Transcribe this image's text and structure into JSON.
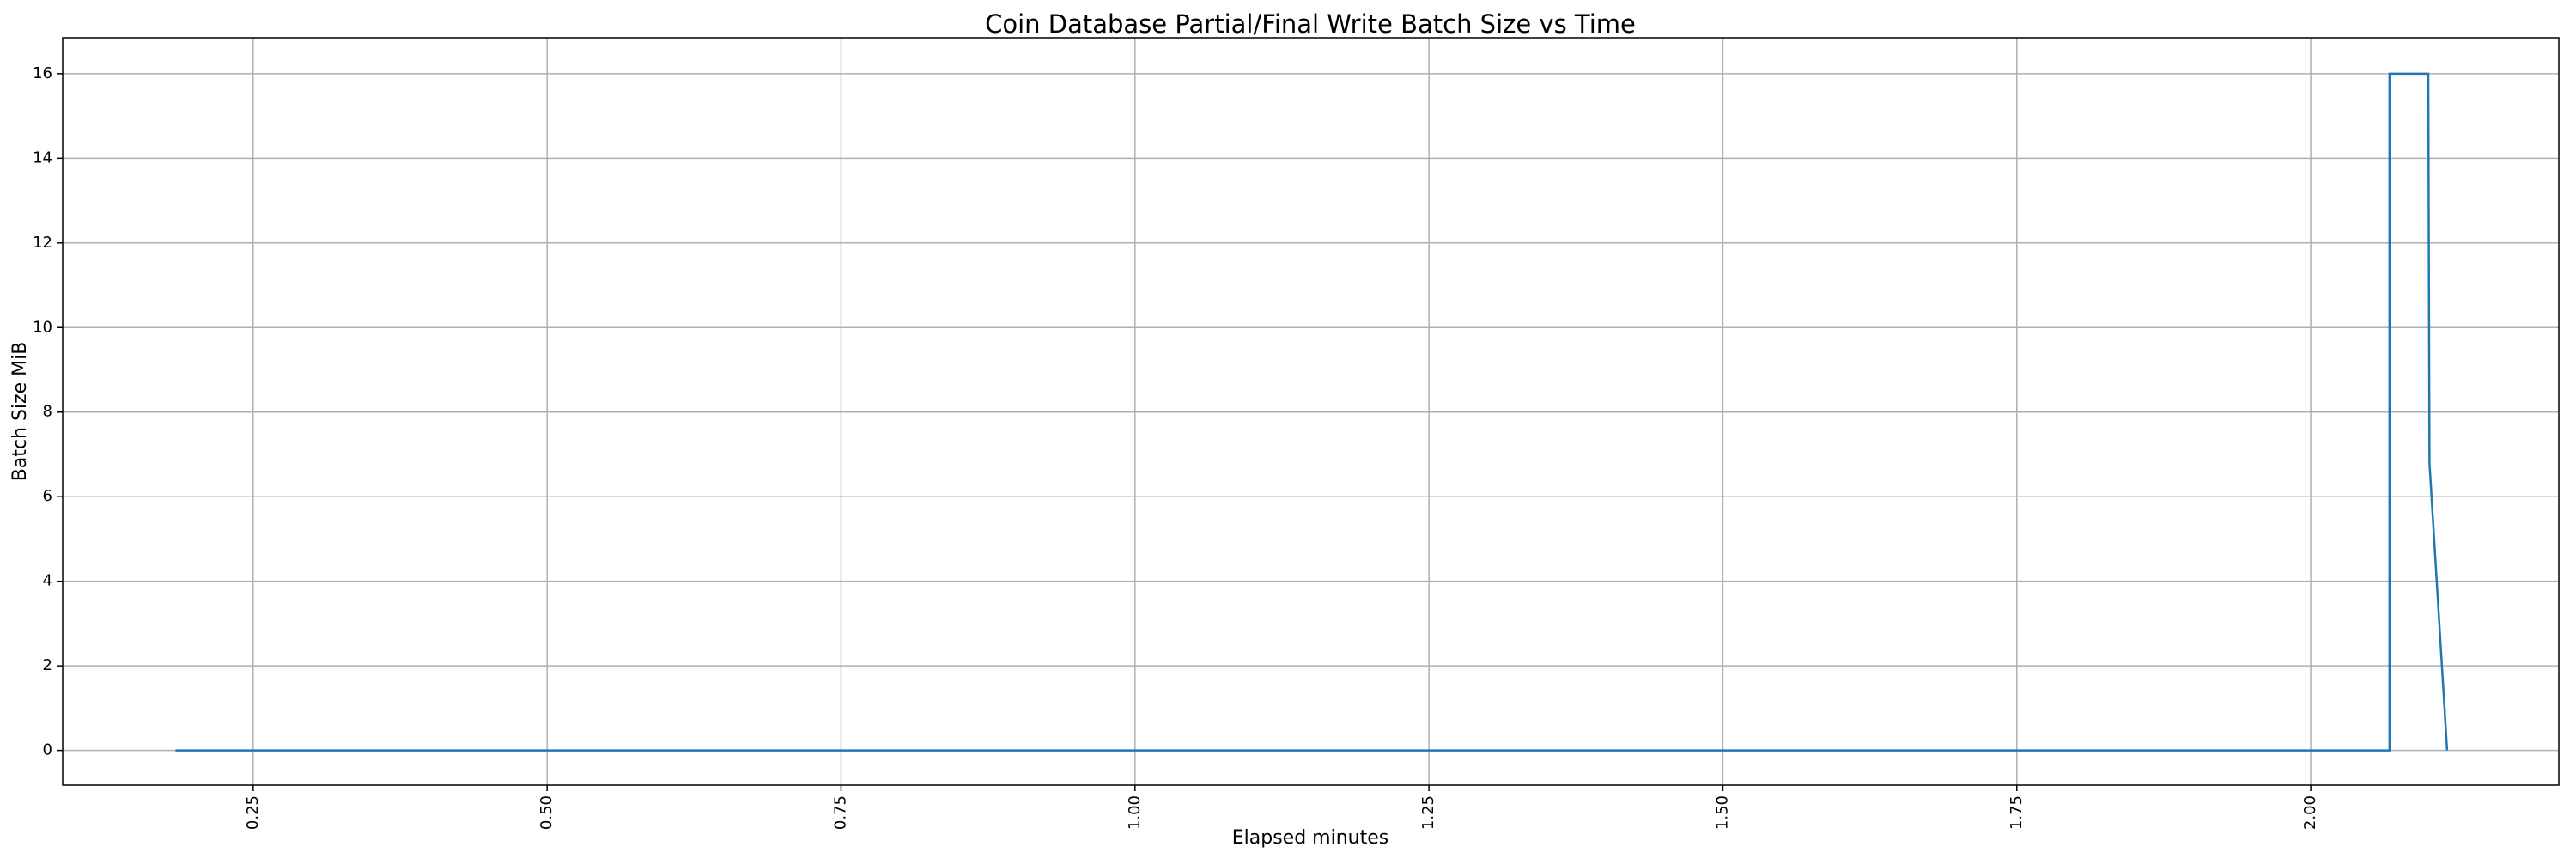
{
  "chart_data": {
    "type": "line",
    "title": "Coin Database Partial/Final Write Batch Size vs Time",
    "xlabel": "Elapsed minutes",
    "ylabel": "Batch Size MiB",
    "series": [
      {
        "color": "#1f77b4",
        "x": [
          0.184,
          2.067,
          2.067,
          2.1,
          2.101,
          2.116
        ],
        "values": [
          0,
          0,
          16,
          16,
          6.8,
          0
        ]
      }
    ],
    "xlim": [
      0.088,
      2.211
    ],
    "ylim": [
      -0.82,
      16.85
    ],
    "xticks": [
      0.25,
      {
        "value": 0.5,
        "label": "0.50"
      },
      0.75,
      {
        "value": 1,
        "label": "1.00"
      },
      1.25,
      {
        "value": 1.5,
        "label": "1.50"
      },
      1.75,
      {
        "value": 2,
        "label": "2.00"
      }
    ],
    "yticks": [
      0,
      2,
      4,
      6,
      8,
      10,
      12,
      14,
      16
    ],
    "grid": true
  }
}
